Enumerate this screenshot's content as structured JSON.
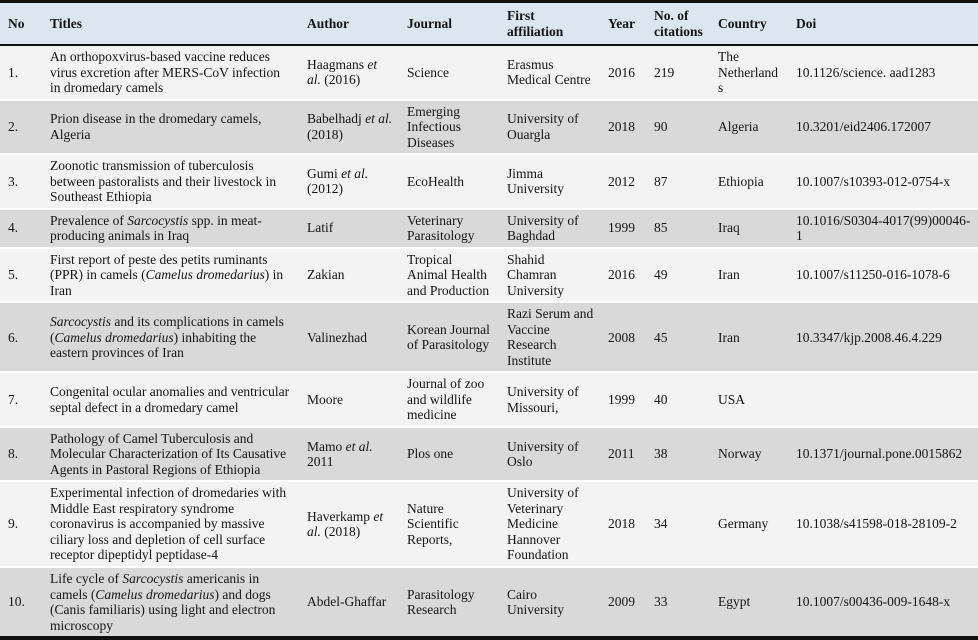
{
  "page": {
    "background": "#ffffff"
  },
  "table": {
    "colors": {
      "header_bg": "#dce6f1",
      "row_odd_bg": "#f3f3f3",
      "row_even_bg": "#d9d9d9",
      "border_black": "#111111",
      "row_separator": "#ffffff",
      "text": "#141414"
    },
    "headers": [
      "No",
      "Titles",
      "Author",
      "Journal",
      "First affiliation",
      "Year",
      "No. of citations",
      "Country",
      "Doi"
    ],
    "rows": [
      {
        "no": "1.",
        "title": "An orthopoxvirus-based vaccine reduces virus excretion after MERS-CoV infection in dromedary camels",
        "author": [
          {
            "t": "Haagmans "
          },
          {
            "t": "et al.",
            "i": true
          },
          {
            "t": " (2016)"
          }
        ],
        "journal": "Science",
        "affiliation": "Erasmus Medical Centre",
        "year": "2016",
        "citations": "219",
        "country": "The Netherlands",
        "doi": "10.1126/science. aad1283"
      },
      {
        "no": "2.",
        "title": "Prion disease in the dromedary camels, Algeria",
        "author": [
          {
            "t": "Babelhadj "
          },
          {
            "t": "et al.",
            "i": true
          },
          {
            "t": " (2018)"
          }
        ],
        "journal": "Emerging Infectious Diseases",
        "affiliation": "University of Ouargla",
        "year": "2018",
        "citations": "90",
        "country": "Algeria",
        "doi": "10.3201/eid2406.172007"
      },
      {
        "no": "3.",
        "title": "Zoonotic transmission of tuberculosis between pastoralists and their livestock in Southeast Ethiopia",
        "author": [
          {
            "t": "Gumi "
          },
          {
            "t": "et al.",
            "i": true
          },
          {
            "t": " (2012)"
          }
        ],
        "journal": "EcoHealth",
        "affiliation": "Jimma University",
        "year": "2012",
        "citations": "87",
        "country": "Ethiopia",
        "doi": "10.1007/s10393-012-0754-x"
      },
      {
        "no": "4.",
        "title": [
          {
            "t": "Prevalence of "
          },
          {
            "t": "Sarcocystis",
            "i": true
          },
          {
            "t": " spp. in meat-producing animals in Iraq"
          }
        ],
        "author": "Latif",
        "journal": "Veterinary Parasitology",
        "affiliation": "University of Baghdad",
        "year": "1999",
        "citations": "85",
        "country": "Iraq",
        "doi": "10.1016/S0304-4017(99)00046-1"
      },
      {
        "no": "5.",
        "title": [
          {
            "t": "First report of peste des petits ruminants (PPR) in camels ("
          },
          {
            "t": "Camelus dromedarius",
            "i": true
          },
          {
            "t": ") in Iran"
          }
        ],
        "author": "Zakian",
        "journal": "Tropical Animal Health and Production",
        "affiliation": "Shahid Chamran University",
        "year": "2016",
        "citations": "49",
        "country": "Iran",
        "doi": "10.1007/s11250-016-1078-6"
      },
      {
        "no": "6.",
        "title": [
          {
            "t": "Sarcocystis",
            "i": true
          },
          {
            "t": " and its complications in camels ("
          },
          {
            "t": "Camelus dromedarius",
            "i": true
          },
          {
            "t": ") inhabiting the eastern provinces of Iran"
          }
        ],
        "author": "Valinezhad",
        "journal": "Korean Journal of Parasitology",
        "affiliation": "Razi Serum and Vaccine Research Institute",
        "year": "2008",
        "citations": "45",
        "country": "Iran",
        "doi": "10.3347/kjp.2008.46.4.229"
      },
      {
        "no": "7.",
        "title": "Congenital ocular anomalies and ventricular septal defect in a dromedary camel",
        "author": "Moore",
        "journal": "Journal of zoo and wildlife medicine",
        "affiliation": "University of Missouri,",
        "year": "1999",
        "citations": "40",
        "country": "USA",
        "doi": ""
      },
      {
        "no": "8.",
        "title": "Pathology of Camel Tuberculosis and Molecular Characterization of Its Causative Agents in Pastoral Regions of Ethiopia",
        "author": [
          {
            "t": "Mamo "
          },
          {
            "t": "et al.",
            "i": true
          },
          {
            "t": " 2011"
          }
        ],
        "journal": "Plos one",
        "affiliation": "University of Oslo",
        "year": "2011",
        "citations": "38",
        "country": "Norway",
        "doi": "10.1371/journal.pone.0015862"
      },
      {
        "no": "9.",
        "title": "Experimental infection of dromedaries with Middle East respiratory syndrome coronavirus is accompanied by massive ciliary loss and depletion of cell surface receptor dipeptidyl peptidase-4",
        "author": [
          {
            "t": "Haverkamp "
          },
          {
            "t": "et al.",
            "i": true
          },
          {
            "t": " (2018)"
          }
        ],
        "journal": "Nature Scientific Reports,",
        "affiliation": "University of Veterinary Medicine Hannover Foundation",
        "year": "2018",
        "citations": "34",
        "country": "Germany",
        "doi": "10.1038/s41598-018-28109-2"
      },
      {
        "no": "10.",
        "title": [
          {
            "t": "Life cycle of "
          },
          {
            "t": "Sarcocystis",
            "i": true
          },
          {
            "t": " americanis in camels ("
          },
          {
            "t": "Camelus dromedarius",
            "i": true
          },
          {
            "t": ") and dogs (Canis familiaris) using light and electron microscopy"
          }
        ],
        "author": "Abdel-Ghaffar",
        "journal": "Parasitology Research",
        "affiliation": "Cairo University",
        "year": "2009",
        "citations": "33",
        "country": "Egypt",
        "doi": "10.1007/s00436-009-1648-x"
      }
    ]
  }
}
